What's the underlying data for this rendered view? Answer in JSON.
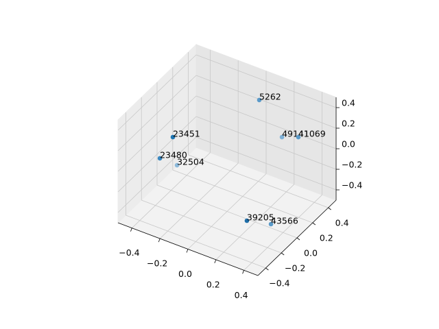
{
  "chart_data": {
    "type": "scatter3d",
    "labels": [
      "5262",
      "49141",
      "41069",
      "23451",
      "23480",
      "32504",
      "39205",
      "43566"
    ],
    "x": [
      0.01,
      0.16,
      0.244,
      -0.346,
      -0.409,
      -0.339,
      0.206,
      0.348
    ],
    "y": [
      0.394,
      0.416,
      0.475,
      -0.074,
      -0.127,
      -0.033,
      -0.115,
      -0.061
    ],
    "z": [
      0.3,
      0,
      0,
      0.1,
      -0.1,
      -0.2,
      -0.4,
      -0.4
    ],
    "colors": [
      "#5a9ac9",
      "#7eb0d6",
      "#5a9ac9",
      "#1f77b4",
      "#3a87bf",
      "#8cb9da",
      "#1f6ea8",
      "#5a9ac9"
    ],
    "xlim": [
      -0.5,
      0.5
    ],
    "ylim": [
      -0.5,
      0.5
    ],
    "zlim": [
      -0.5,
      0.5
    ],
    "xticks": [
      {
        "value": -0.4,
        "label": "−0.4"
      },
      {
        "value": -0.2,
        "label": "−0.2"
      },
      {
        "value": 0,
        "label": "0.0"
      },
      0.2,
      0.4
    ],
    "yticks": [
      {
        "value": -0.4,
        "label": "−0.4"
      },
      {
        "value": -0.2,
        "label": "−0.2"
      },
      {
        "value": 0,
        "label": "0.0"
      },
      0.2,
      0.4
    ],
    "zticks": [
      {
        "value": -0.4,
        "label": "−0.4"
      },
      {
        "value": -0.2,
        "label": "−0.2"
      },
      {
        "value": 0,
        "label": "0.0"
      },
      0.2,
      0.4
    ],
    "grid": true
  }
}
